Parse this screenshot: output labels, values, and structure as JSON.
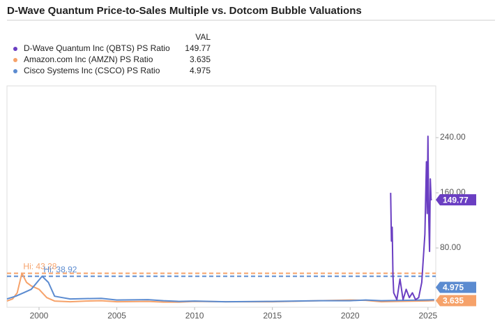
{
  "chart_data": {
    "type": "line",
    "title": "D-Wave Quantum Price-to-Sales Multiple vs. Dotcom Bubble Valuations",
    "legend_header": "VAL",
    "xlim": [
      1997.94,
      2025.5
    ],
    "xticks": [
      2000,
      2005,
      2010,
      2015,
      2020,
      2025
    ],
    "ylim": [
      -6,
      315
    ],
    "yticks": [
      {
        "value": 80,
        "label": "80.00"
      },
      {
        "value": 160,
        "label": "160.00"
      },
      {
        "value": 240,
        "label": "240.00"
      }
    ],
    "series": [
      {
        "name": "D-Wave Quantum Inc (QBTS) PS Ratio",
        "color": "#6a3ec2",
        "last_value": 149.77,
        "x": [
          2022.6,
          2022.65,
          2022.7,
          2022.75,
          2022.8,
          2023.0,
          2023.2,
          2023.4,
          2023.6,
          2023.8,
          2024.0,
          2024.2,
          2024.4,
          2024.6,
          2024.8,
          2024.9,
          2024.95,
          2025.0,
          2025.05,
          2025.1,
          2025.15,
          2025.2,
          2025.25
        ],
        "values": [
          160,
          90,
          110,
          40,
          15,
          5,
          35,
          5,
          20,
          8,
          15,
          5,
          8,
          30,
          100,
          205,
          130,
          242,
          120,
          75,
          180,
          150,
          149.77
        ]
      },
      {
        "name": "Amazon.com Inc (AMZN) PS Ratio",
        "color": "#f6a26a",
        "last_value": 3.635,
        "x": [
          1997.94,
          1998.3,
          1998.6,
          1998.9,
          1999.2,
          1999.5,
          2000.0,
          2000.5,
          2001.0,
          2002.0,
          2003.0,
          2004.0,
          2005.0,
          2007.0,
          2008.0,
          2009.0,
          2010.0,
          2012.0,
          2015.0,
          2018.0,
          2020.0,
          2021.0,
          2022.0,
          2023.0,
          2025.0,
          2025.4
        ],
        "values": [
          3,
          6,
          15,
          43.28,
          30,
          25,
          20,
          8,
          3,
          2,
          3,
          3.5,
          2,
          2.5,
          1.5,
          1.5,
          2.5,
          2,
          2,
          3.5,
          4.5,
          4,
          2,
          2.5,
          3.2,
          3.635
        ]
      },
      {
        "name": "Cisco Systems Inc (CSCO) PS Ratio",
        "color": "#5b8bd0",
        "last_value": 4.975,
        "x": [
          1997.94,
          1998.5,
          1999.0,
          1999.5,
          2000.2,
          2000.6,
          2001.0,
          2001.5,
          2002.0,
          2004.0,
          2005.0,
          2007.0,
          2008.0,
          2009.0,
          2010.0,
          2012.0,
          2015.0,
          2018.0,
          2020.0,
          2021.0,
          2022.0,
          2025.0,
          2025.4
        ],
        "values": [
          6,
          10,
          15,
          20,
          38.92,
          30,
          10,
          8,
          6,
          7,
          4.5,
          5,
          3.5,
          2.5,
          3,
          2,
          2.5,
          3.5,
          3.5,
          4.5,
          3.5,
          4.6,
          4.975
        ]
      }
    ],
    "annotations": [
      {
        "label": "Hi: 43.28",
        "value": 43.28,
        "series": 1,
        "x": 1998.9
      },
      {
        "label": "Hi: 38.92",
        "value": 38.92,
        "series": 2,
        "x": 2000.2
      }
    ]
  }
}
